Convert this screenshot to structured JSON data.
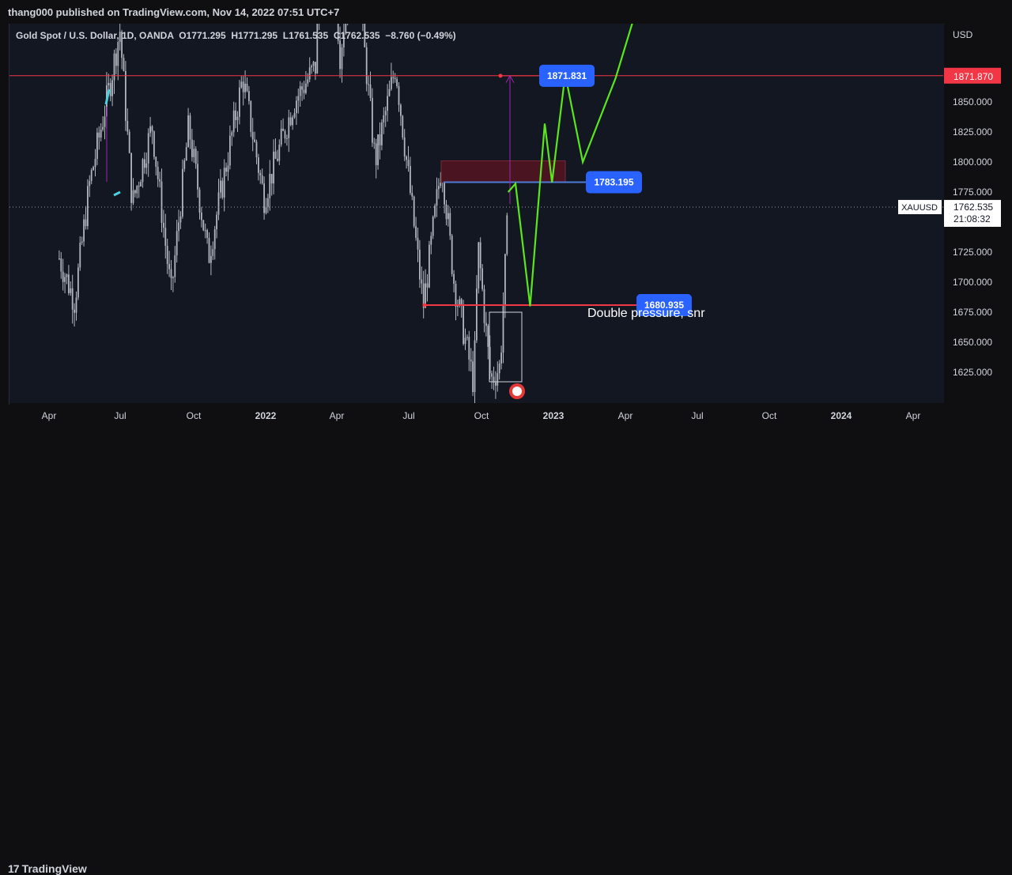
{
  "header": {
    "published": "thang000 published on TradingView.com, Nov 14, 2022 07:51 UTC+7"
  },
  "legend": {
    "symbol": "Gold Spot / U.S. Dollar, 1D, OANDA",
    "open_label": "O",
    "open": "1771.295",
    "high_label": "H",
    "high": "1771.295",
    "low_label": "L",
    "low": "1761.535",
    "close_label": "C",
    "close": "1762.535",
    "change": "−8.760 (−0.49%)"
  },
  "footer": {
    "brand": "TradingView"
  },
  "colors": {
    "background": "#131722",
    "candle": "#b2b5be",
    "projection": "#5ce61c",
    "level_line": "#f23645",
    "label_blue": "#2962ff",
    "zone_fill": "#4a1520",
    "measure": "#9c27b0"
  },
  "chart_data": {
    "type": "line",
    "symbol": "XAUUSD",
    "currency": "USD",
    "price_axis_ticks": [
      "1850.000",
      "1825.000",
      "1800.000",
      "1775.000",
      "1725.000",
      "1700.000",
      "1675.000",
      "1650.000",
      "1625.000"
    ],
    "time_axis_ticks": [
      "Apr",
      "Jul",
      "Oct",
      "2022",
      "Apr",
      "Jul",
      "Oct",
      "2023",
      "Apr",
      "Jul",
      "Oct",
      "2024",
      "Apr"
    ],
    "ylim": [
      1600,
      1885
    ],
    "last_price": "1762.535",
    "countdown": "21:08:32",
    "price_history": {
      "x": [
        "2021-03-10",
        "2021-03-31",
        "2021-04-20",
        "2021-05-20",
        "2021-06-01",
        "2021-06-18",
        "2021-07-15",
        "2021-08-10",
        "2021-09-03",
        "2021-09-30",
        "2021-11-16",
        "2021-12-15",
        "2022-01-25",
        "2022-02-24",
        "2022-03-08",
        "2022-03-29",
        "2022-04-18",
        "2022-05-16",
        "2022-06-13",
        "2022-07-21",
        "2022-08-15",
        "2022-09-01",
        "2022-09-28",
        "2022-10-04",
        "2022-10-21",
        "2022-11-03",
        "2022-11-14"
      ],
      "y": [
        1720,
        1684,
        1780,
        1870,
        1910,
        1765,
        1830,
        1690,
        1830,
        1720,
        1870,
        1770,
        1850,
        1880,
        2070,
        1890,
        1980,
        1800,
        1880,
        1680,
        1800,
        1700,
        1615,
        1730,
        1618,
        1630,
        1762
      ]
    },
    "projection": {
      "x": [
        "2022-11-14",
        "2022-11-24",
        "2022-12-14",
        "2023-01-03",
        "2023-01-13",
        "2023-01-31",
        "2023-02-24",
        "2023-04-10",
        "2023-05-25"
      ],
      "y": [
        1775,
        1782,
        1680,
        1832,
        1783,
        1873,
        1800,
        1870,
        1960
      ]
    },
    "levels": [
      {
        "label": "1871.831",
        "value": 1871.831
      },
      {
        "label": "1783.195",
        "value": 1783.195
      },
      {
        "label": "1680.935",
        "value": 1680.935
      }
    ],
    "resistance_marker": "1871.870",
    "supply_zone": [
      1783,
      1801
    ],
    "annotations": [
      "Double pressure, snr"
    ]
  }
}
